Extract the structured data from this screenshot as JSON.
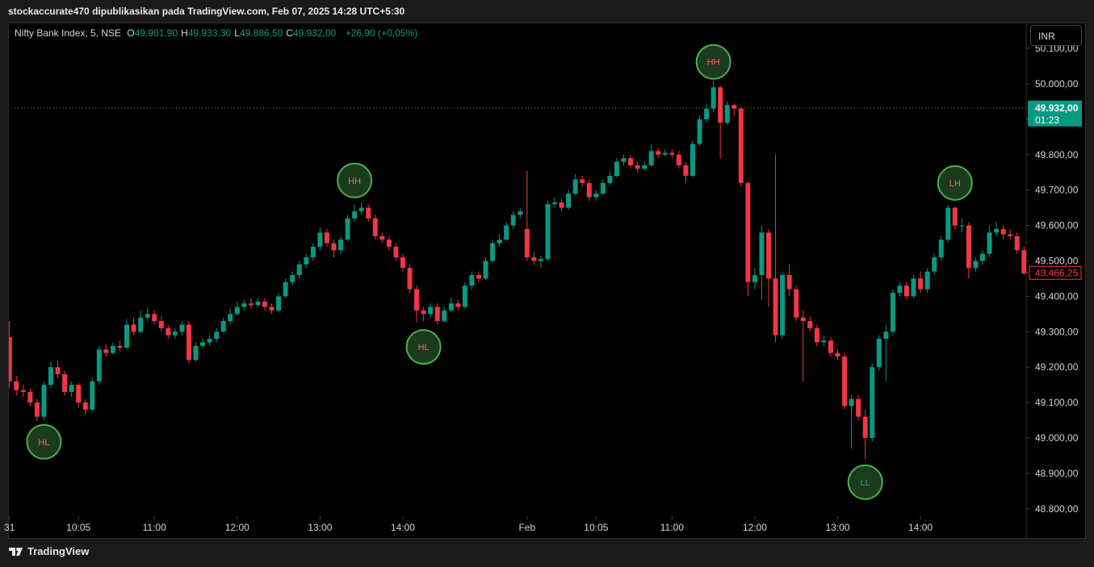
{
  "header": {
    "publisher": "stockaccurate470 dipublikasikan pada TradingView.com, Feb 07, 2025 14:28 UTC+5:30"
  },
  "footer": {
    "brand": "TradingView"
  },
  "currency_button": "INR",
  "chart_data": {
    "type": "candlestick",
    "symbol": "Nifty Bank Index, 5, NSE",
    "ohlc": [
      {
        "key": "O",
        "value": "49.901,90"
      },
      {
        "key": "H",
        "value": "49.933,30"
      },
      {
        "key": "L",
        "value": "49.886,50"
      },
      {
        "key": "C",
        "value": "49.932,00"
      }
    ],
    "change": "+26,90 (+0,05%)",
    "up_color": "#089981",
    "down_color": "#f23645",
    "grid": false,
    "ylim": [
      48779,
      50173
    ],
    "yticks": [
      {
        "value": 48800,
        "label": "48.800,00"
      },
      {
        "value": 48900,
        "label": "48.900,00"
      },
      {
        "value": 49000,
        "label": "49.000,00"
      },
      {
        "value": 49100,
        "label": "49.100,00"
      },
      {
        "value": 49200,
        "label": "49.200,00"
      },
      {
        "value": 49300,
        "label": "49.300,00"
      },
      {
        "value": 49400,
        "label": "49.400,00"
      },
      {
        "value": 49500,
        "label": "49.500,00"
      },
      {
        "value": 49600,
        "label": "49.600,00"
      },
      {
        "value": 49700,
        "label": "49.700,00"
      },
      {
        "value": 49800,
        "label": "49.800,00"
      },
      {
        "value": 49900,
        "label": "49.900,00"
      },
      {
        "value": 50000,
        "label": "50.000,00"
      },
      {
        "value": 50100,
        "label": "50.100,00"
      }
    ],
    "xlim": [
      -0.2,
      147.2
    ],
    "xticks": [
      {
        "value": 0,
        "label": "31"
      },
      {
        "value": 10,
        "label": "10:05"
      },
      {
        "value": 21,
        "label": "11:00"
      },
      {
        "value": 33,
        "label": "12:00"
      },
      {
        "value": 45,
        "label": "13:00"
      },
      {
        "value": 57,
        "label": "14:00"
      },
      {
        "value": 75,
        "label": "Feb"
      },
      {
        "value": 85,
        "label": "10:05"
      },
      {
        "value": 96,
        "label": "11:00"
      },
      {
        "value": 108,
        "label": "12:00"
      },
      {
        "value": 120,
        "label": "13:00"
      },
      {
        "value": 132,
        "label": "14:00"
      }
    ],
    "price_line": {
      "value": 49932,
      "label": "49.932,00",
      "countdown": "01:23"
    },
    "last_price": {
      "value": 49466.25,
      "label": "49.466,25"
    },
    "annotations": [
      {
        "index": 5,
        "value": 48989,
        "label": "HL"
      },
      {
        "index": 50,
        "value": 49727,
        "label": "HH"
      },
      {
        "index": 60,
        "value": 49257,
        "label": "HL"
      },
      {
        "index": 102,
        "value": 50062,
        "label": "HH"
      },
      {
        "index": 124,
        "value": 48875,
        "label": "LL"
      },
      {
        "index": 137,
        "value": 49720,
        "label": "LH"
      }
    ],
    "candles": [
      [
        49285,
        49330,
        49140,
        49160
      ],
      [
        49160,
        49175,
        49120,
        49135
      ],
      [
        49135,
        49150,
        49115,
        49130
      ],
      [
        49130,
        49140,
        49090,
        49100
      ],
      [
        49100,
        49110,
        49048,
        49060
      ],
      [
        49060,
        49160,
        49050,
        49150
      ],
      [
        49150,
        49215,
        49140,
        49200
      ],
      [
        49200,
        49220,
        49170,
        49180
      ],
      [
        49180,
        49190,
        49120,
        49130
      ],
      [
        49130,
        49160,
        49115,
        49150
      ],
      [
        49150,
        49155,
        49085,
        49100
      ],
      [
        49100,
        49110,
        49065,
        49080
      ],
      [
        49080,
        49170,
        49075,
        49160
      ],
      [
        49160,
        49260,
        49150,
        49250
      ],
      [
        49250,
        49265,
        49230,
        49240
      ],
      [
        49240,
        49270,
        49235,
        49260
      ],
      [
        49260,
        49275,
        49245,
        49255
      ],
      [
        49255,
        49335,
        49250,
        49320
      ],
      [
        49320,
        49340,
        49290,
        49300
      ],
      [
        49300,
        49360,
        49295,
        49340
      ],
      [
        49340,
        49370,
        49330,
        49350
      ],
      [
        49350,
        49360,
        49320,
        49330
      ],
      [
        49330,
        49345,
        49300,
        49310
      ],
      [
        49310,
        49320,
        49280,
        49290
      ],
      [
        49290,
        49310,
        49280,
        49300
      ],
      [
        49300,
        49330,
        49290,
        49320
      ],
      [
        49320,
        49330,
        49210,
        49220
      ],
      [
        49220,
        49270,
        49215,
        49260
      ],
      [
        49260,
        49280,
        49255,
        49270
      ],
      [
        49270,
        49290,
        49260,
        49280
      ],
      [
        49280,
        49310,
        49270,
        49300
      ],
      [
        49300,
        49340,
        49295,
        49330
      ],
      [
        49330,
        49365,
        49320,
        49350
      ],
      [
        49350,
        49385,
        49345,
        49370
      ],
      [
        49370,
        49390,
        49360,
        49380
      ],
      [
        49380,
        49395,
        49365,
        49375
      ],
      [
        49375,
        49395,
        49370,
        49385
      ],
      [
        49385,
        49395,
        49360,
        49370
      ],
      [
        49370,
        49380,
        49350,
        49360
      ],
      [
        49360,
        49410,
        49355,
        49400
      ],
      [
        49400,
        49450,
        49395,
        49440
      ],
      [
        49440,
        49470,
        49430,
        49460
      ],
      [
        49460,
        49500,
        49450,
        49490
      ],
      [
        49490,
        49520,
        49480,
        49510
      ],
      [
        49510,
        49550,
        49500,
        49540
      ],
      [
        49540,
        49595,
        49530,
        49580
      ],
      [
        49580,
        49590,
        49540,
        49550
      ],
      [
        49550,
        49560,
        49510,
        49530
      ],
      [
        49530,
        49570,
        49520,
        49560
      ],
      [
        49560,
        49630,
        49555,
        49620
      ],
      [
        49620,
        49660,
        49610,
        49640
      ],
      [
        49640,
        49665,
        49630,
        49650
      ],
      [
        49650,
        49660,
        49610,
        49620
      ],
      [
        49620,
        49630,
        49560,
        49570
      ],
      [
        49570,
        49580,
        49550,
        49560
      ],
      [
        49560,
        49570,
        49530,
        49540
      ],
      [
        49540,
        49550,
        49500,
        49510
      ],
      [
        49510,
        49520,
        49470,
        49480
      ],
      [
        49480,
        49490,
        49410,
        49420
      ],
      [
        49420,
        49430,
        49326,
        49360
      ],
      [
        49360,
        49370,
        49330,
        49350
      ],
      [
        49350,
        49380,
        49340,
        49370
      ],
      [
        49370,
        49380,
        49320,
        49330
      ],
      [
        49330,
        49370,
        49325,
        49360
      ],
      [
        49360,
        49395,
        49355,
        49380
      ],
      [
        49380,
        49390,
        49360,
        49370
      ],
      [
        49370,
        49440,
        49365,
        49430
      ],
      [
        49430,
        49470,
        49420,
        49460
      ],
      [
        49460,
        49470,
        49440,
        49450
      ],
      [
        49450,
        49510,
        49445,
        49500
      ],
      [
        49500,
        49560,
        49495,
        49550
      ],
      [
        49550,
        49575,
        49540,
        49560
      ],
      [
        49560,
        49610,
        49555,
        49600
      ],
      [
        49600,
        49640,
        49590,
        49630
      ],
      [
        49630,
        49650,
        49620,
        49640
      ],
      [
        49590,
        49754,
        49500,
        49510
      ],
      [
        49510,
        49525,
        49490,
        49500
      ],
      [
        49500,
        49515,
        49480,
        49505
      ],
      [
        49505,
        49670,
        49500,
        49660
      ],
      [
        49660,
        49680,
        49650,
        49665
      ],
      [
        49665,
        49675,
        49640,
        49650
      ],
      [
        49650,
        49700,
        49645,
        49690
      ],
      [
        49690,
        49745,
        49685,
        49730
      ],
      [
        49730,
        49740,
        49710,
        49720
      ],
      [
        49720,
        49730,
        49670,
        49680
      ],
      [
        49680,
        49700,
        49670,
        49690
      ],
      [
        49690,
        49730,
        49685,
        49720
      ],
      [
        49720,
        49750,
        49715,
        49740
      ],
      [
        49740,
        49790,
        49735,
        49780
      ],
      [
        49780,
        49800,
        49770,
        49790
      ],
      [
        49790,
        49800,
        49760,
        49770
      ],
      [
        49770,
        49780,
        49750,
        49760
      ],
      [
        49760,
        49780,
        49755,
        49770
      ],
      [
        49770,
        49830,
        49765,
        49810
      ],
      [
        49810,
        49820,
        49790,
        49800
      ],
      [
        49800,
        49815,
        49795,
        49805
      ],
      [
        49805,
        49815,
        49790,
        49800
      ],
      [
        49800,
        49810,
        49760,
        49770
      ],
      [
        49770,
        49780,
        49720,
        49740
      ],
      [
        49740,
        49840,
        49735,
        49830
      ],
      [
        49830,
        49910,
        49825,
        49900
      ],
      [
        49900,
        49945,
        49890,
        49930
      ],
      [
        49930,
        50009,
        49920,
        49990
      ],
      [
        49990,
        49995,
        49790,
        49890
      ],
      [
        49890,
        49950,
        49885,
        49940
      ],
      [
        49940,
        49945,
        49910,
        49930
      ],
      [
        49930,
        49935,
        49710,
        49720
      ],
      [
        49720,
        49725,
        49400,
        49440
      ],
      [
        49440,
        49480,
        49420,
        49460
      ],
      [
        49460,
        49600,
        49390,
        49580
      ],
      [
        49580,
        49590,
        49370,
        49450
      ],
      [
        49450,
        49800,
        49270,
        49290
      ],
      [
        49290,
        49470,
        49280,
        49460
      ],
      [
        49460,
        49490,
        49400,
        49420
      ],
      [
        49420,
        49430,
        49330,
        49340
      ],
      [
        49340,
        49360,
        49160,
        49330
      ],
      [
        49330,
        49345,
        49300,
        49310
      ],
      [
        49310,
        49320,
        49260,
        49270
      ],
      [
        49270,
        49290,
        49260,
        49275
      ],
      [
        49275,
        49285,
        49230,
        49240
      ],
      [
        49240,
        49250,
        49220,
        49230
      ],
      [
        49230,
        49240,
        49080,
        49090
      ],
      [
        49090,
        49120,
        48970,
        49110
      ],
      [
        49110,
        49120,
        49050,
        49060
      ],
      [
        49060,
        49080,
        48940,
        49000
      ],
      [
        49000,
        49210,
        48990,
        49200
      ],
      [
        49200,
        49290,
        49190,
        49280
      ],
      [
        49280,
        49320,
        49160,
        49300
      ],
      [
        49300,
        49420,
        49290,
        49410
      ],
      [
        49410,
        49440,
        49400,
        49430
      ],
      [
        49430,
        49440,
        49390,
        49400
      ],
      [
        49400,
        49460,
        49395,
        49450
      ],
      [
        49450,
        49470,
        49410,
        49420
      ],
      [
        49420,
        49480,
        49410,
        49470
      ],
      [
        49470,
        49520,
        49460,
        49510
      ],
      [
        49510,
        49570,
        49500,
        49560
      ],
      [
        49560,
        49658,
        49550,
        49650
      ],
      [
        49650,
        49655,
        49590,
        49600
      ],
      [
        49600,
        49620,
        49580,
        49600
      ],
      [
        49600,
        49610,
        49450,
        49480
      ],
      [
        49480,
        49510,
        49470,
        49500
      ],
      [
        49500,
        49530,
        49490,
        49520
      ],
      [
        49520,
        49600,
        49510,
        49580
      ],
      [
        49580,
        49610,
        49570,
        49590
      ],
      [
        49590,
        49600,
        49560,
        49575
      ],
      [
        49575,
        49590,
        49560,
        49570
      ],
      [
        49570,
        49580,
        49520,
        49530
      ],
      [
        49530,
        49540,
        49460,
        49466.25
      ]
    ]
  }
}
